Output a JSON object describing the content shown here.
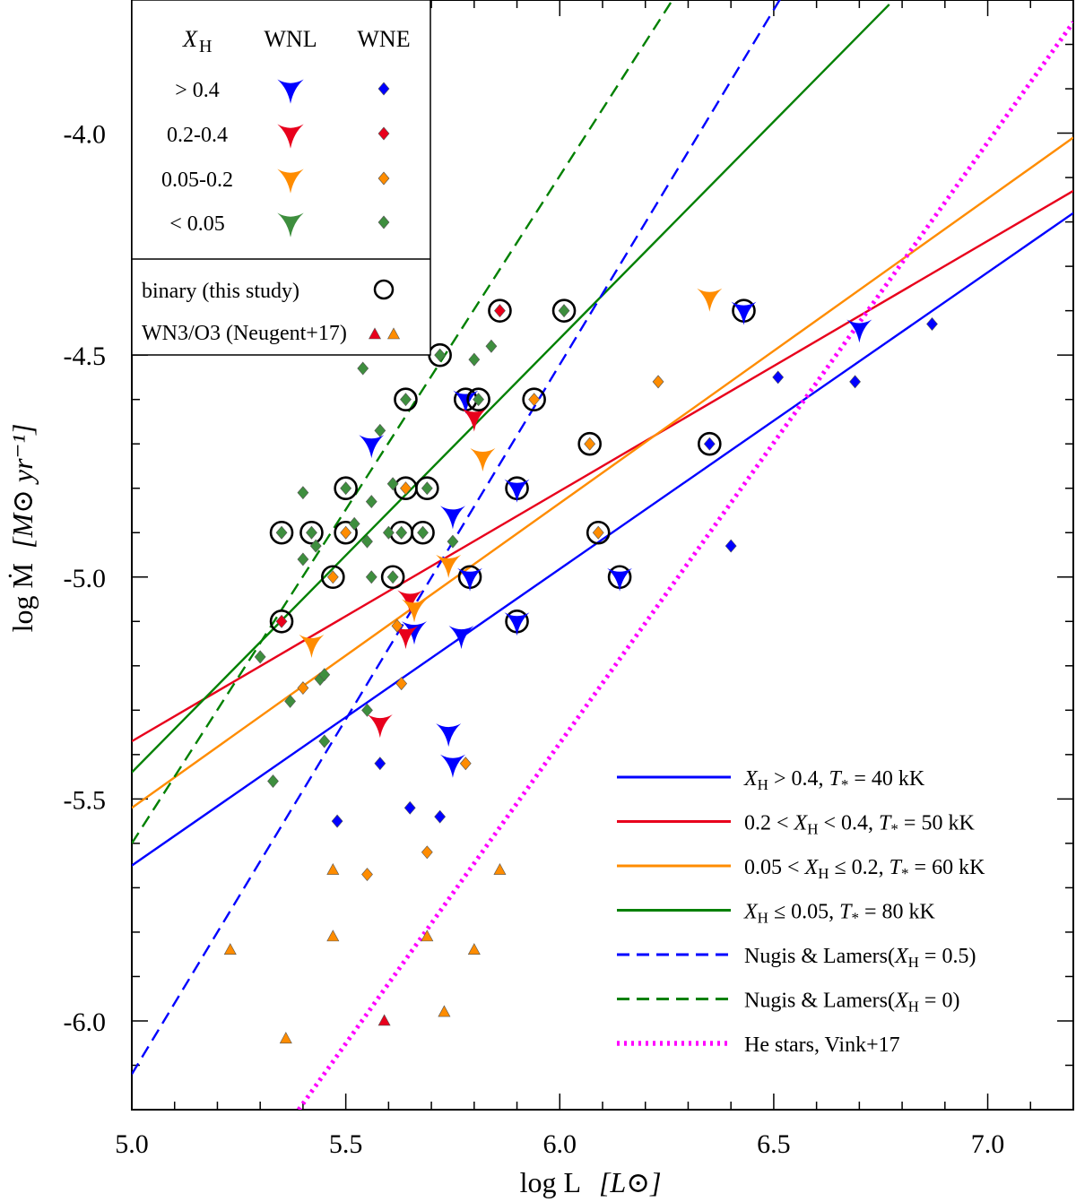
{
  "chart_data": {
    "type": "scatter",
    "title": "",
    "xlabel": "log L",
    "xlabel_unit": "[L⊙]",
    "ylabel": "log Ṁ",
    "ylabel_unit": "[M⊙ yr⁻¹]",
    "xlim": [
      5.0,
      7.2
    ],
    "ylim": [
      -6.2,
      -3.7
    ],
    "x_ticks": [
      5.0,
      5.5,
      6.0,
      6.5,
      7.0
    ],
    "x_tick_labels": [
      "5.0",
      "5.5",
      "6.0",
      "6.5",
      "7.0"
    ],
    "y_ticks": [
      -6.0,
      -5.5,
      -5.0,
      -4.5,
      -4.0
    ],
    "y_tick_labels": [
      "-6.0",
      "-5.5",
      "-5.0",
      "-4.5",
      "-4.0"
    ],
    "colors": {
      "blue": "#0000ff",
      "red": "#e8001c",
      "orange": "#ff8c00",
      "green": "#3e8e3e",
      "dark_green": "#008000",
      "magenta": "#ff00ff",
      "neugent_red": "#e8001c",
      "neugent_orange": "#ff8c00"
    },
    "categories_legend": {
      "header_xh": "X",
      "header_xh_sub": "H",
      "header_wnl": "WNL",
      "header_wne": "WNE",
      "rows": [
        {
          "label": "> 0.4",
          "color": "blue"
        },
        {
          "label": "0.2-0.4",
          "color": "red"
        },
        {
          "label": "0.05-0.2",
          "color": "orange"
        },
        {
          "label": "< 0.05",
          "color": "green"
        }
      ],
      "binary_label": "binary (this study)",
      "neugent_label": "WN3/O3 (Neugent+17)"
    },
    "lines": [
      {
        "name": "XH > 0.4, T* = 40 kK",
        "label_parts": [
          "X",
          "H",
          " > 0.4, ",
          "T",
          "*",
          " = 40 kK"
        ],
        "color": "blue",
        "style": "solid",
        "points": [
          [
            5.0,
            -5.65
          ],
          [
            7.2,
            -4.18
          ]
        ]
      },
      {
        "name": "0.2 < XH < 0.4, T* = 50 kK",
        "label_parts": [
          "0.2 < ",
          "X",
          "H",
          " < 0.4, ",
          "T",
          "*",
          " = 50 kK"
        ],
        "color": "red",
        "style": "solid",
        "points": [
          [
            5.0,
            -5.37
          ],
          [
            7.2,
            -4.13
          ]
        ]
      },
      {
        "name": "0.05 < XH ≤ 0.2, T* = 60 kK",
        "label_parts": [
          "0.05 < ",
          "X",
          "H",
          " ≤ 0.2, ",
          "T",
          "*",
          " = 60 kK"
        ],
        "color": "orange",
        "style": "solid",
        "points": [
          [
            5.0,
            -5.52
          ],
          [
            7.2,
            -4.01
          ]
        ]
      },
      {
        "name": "XH ≤ 0.05, T* = 80 kK",
        "label_parts": [
          "X",
          "H",
          " ≤ 0.05, ",
          "T",
          "*",
          " = 80 kK"
        ],
        "color": "dark_green",
        "style": "solid",
        "points": [
          [
            5.0,
            -5.44
          ],
          [
            6.77,
            -3.71
          ]
        ]
      },
      {
        "name": "Nugis & Lamers(XH = 0.5)",
        "label_parts": [
          "Nugis & Lamers(",
          "X",
          "H",
          " = 0.5)"
        ],
        "color": "blue",
        "style": "dashed",
        "points": [
          [
            5.0,
            -6.12
          ],
          [
            6.52,
            -3.69
          ]
        ]
      },
      {
        "name": "Nugis & Lamers(XH = 0)",
        "label_parts": [
          "Nugis & Lamers(",
          "X",
          "H",
          " = 0)"
        ],
        "color": "dark_green",
        "style": "dashed",
        "points": [
          [
            5.0,
            -5.6
          ],
          [
            6.27,
            -3.69
          ]
        ]
      },
      {
        "name": "He stars, Vink+17",
        "label_parts": [
          "He stars, Vink+17"
        ],
        "color": "magenta",
        "style": "dotted",
        "points": [
          [
            5.39,
            -6.2
          ],
          [
            7.2,
            -3.75
          ]
        ]
      }
    ],
    "series": [
      {
        "name": "WNL XH > 0.4",
        "marker": "tri",
        "color": "blue",
        "points": [
          {
            "x": 5.56,
            "y": -4.7,
            "b": false
          },
          {
            "x": 5.78,
            "y": -4.6,
            "b": true
          },
          {
            "x": 5.75,
            "y": -4.86,
            "b": false
          },
          {
            "x": 5.9,
            "y": -4.8,
            "b": true
          },
          {
            "x": 5.79,
            "y": -5.0,
            "b": true
          },
          {
            "x": 5.66,
            "y": -5.12,
            "b": false
          },
          {
            "x": 5.77,
            "y": -5.13,
            "b": false
          },
          {
            "x": 5.9,
            "y": -5.1,
            "b": true
          },
          {
            "x": 5.74,
            "y": -5.35,
            "b": false
          },
          {
            "x": 5.75,
            "y": -5.42,
            "b": false
          },
          {
            "x": 6.14,
            "y": -5.0,
            "b": true
          },
          {
            "x": 6.43,
            "y": -4.4,
            "b": true
          },
          {
            "x": 6.7,
            "y": -4.44,
            "b": false
          }
        ]
      },
      {
        "name": "WNL 0.2-0.4",
        "marker": "tri",
        "color": "red",
        "points": [
          {
            "x": 5.8,
            "y": -4.64,
            "b": false
          },
          {
            "x": 5.65,
            "y": -5.05,
            "b": false
          },
          {
            "x": 5.64,
            "y": -5.13,
            "b": false
          },
          {
            "x": 5.58,
            "y": -5.33,
            "b": false
          }
        ]
      },
      {
        "name": "WNL 0.05-0.2",
        "marker": "tri",
        "color": "orange",
        "points": [
          {
            "x": 5.82,
            "y": -4.73,
            "b": false
          },
          {
            "x": 5.74,
            "y": -4.97,
            "b": false
          },
          {
            "x": 5.66,
            "y": -5.07,
            "b": false
          },
          {
            "x": 5.42,
            "y": -5.15,
            "b": false
          },
          {
            "x": 6.35,
            "y": -4.37,
            "b": false
          }
        ]
      },
      {
        "name": "WNE XH > 0.4",
        "marker": "diamond",
        "color": "blue",
        "points": [
          {
            "x": 6.35,
            "y": -4.7,
            "b": true
          },
          {
            "x": 6.51,
            "y": -4.55,
            "b": false
          },
          {
            "x": 6.69,
            "y": -4.56,
            "b": false
          },
          {
            "x": 6.87,
            "y": -4.43,
            "b": false
          },
          {
            "x": 6.4,
            "y": -4.93,
            "b": false
          },
          {
            "x": 5.58,
            "y": -5.42,
            "b": false
          },
          {
            "x": 5.48,
            "y": -5.55,
            "b": false
          },
          {
            "x": 5.65,
            "y": -5.52,
            "b": false
          },
          {
            "x": 5.72,
            "y": -5.54,
            "b": false
          }
        ]
      },
      {
        "name": "WNE 0.2-0.4",
        "marker": "diamond",
        "color": "red",
        "points": [
          {
            "x": 5.86,
            "y": -4.4,
            "b": true
          },
          {
            "x": 5.35,
            "y": -5.1,
            "b": true
          }
        ]
      },
      {
        "name": "WNE 0.05-0.2",
        "marker": "diamond",
        "color": "orange",
        "points": [
          {
            "x": 5.94,
            "y": -4.6,
            "b": true
          },
          {
            "x": 6.07,
            "y": -4.7,
            "b": true
          },
          {
            "x": 5.64,
            "y": -4.8,
            "b": true
          },
          {
            "x": 5.5,
            "y": -4.9,
            "b": true
          },
          {
            "x": 6.09,
            "y": -4.9,
            "b": true
          },
          {
            "x": 5.47,
            "y": -5.0,
            "b": true
          },
          {
            "x": 6.23,
            "y": -4.56,
            "b": false
          },
          {
            "x": 5.62,
            "y": -5.11,
            "b": false
          },
          {
            "x": 5.4,
            "y": -5.25,
            "b": false
          },
          {
            "x": 5.63,
            "y": -5.24,
            "b": false
          },
          {
            "x": 5.78,
            "y": -5.42,
            "b": false
          },
          {
            "x": 5.69,
            "y": -5.62,
            "b": false
          },
          {
            "x": 5.55,
            "y": -5.67,
            "b": false
          }
        ]
      },
      {
        "name": "WNE < 0.05",
        "marker": "diamond",
        "color": "green",
        "points": [
          {
            "x": 6.01,
            "y": -4.4,
            "b": true
          },
          {
            "x": 5.72,
            "y": -4.5,
            "b": true
          },
          {
            "x": 5.64,
            "y": -4.6,
            "b": true
          },
          {
            "x": 5.81,
            "y": -4.6,
            "b": true
          },
          {
            "x": 5.5,
            "y": -4.8,
            "b": true
          },
          {
            "x": 5.69,
            "y": -4.8,
            "b": true
          },
          {
            "x": 5.35,
            "y": -4.9,
            "b": true
          },
          {
            "x": 5.42,
            "y": -4.9,
            "b": true
          },
          {
            "x": 5.63,
            "y": -4.9,
            "b": true
          },
          {
            "x": 5.68,
            "y": -4.9,
            "b": true
          },
          {
            "x": 5.61,
            "y": -5.0,
            "b": true
          },
          {
            "x": 5.84,
            "y": -4.48,
            "b": false
          },
          {
            "x": 5.8,
            "y": -4.51,
            "b": false
          },
          {
            "x": 5.54,
            "y": -4.53,
            "b": false
          },
          {
            "x": 5.58,
            "y": -4.67,
            "b": false
          },
          {
            "x": 5.4,
            "y": -4.81,
            "b": false
          },
          {
            "x": 5.56,
            "y": -4.83,
            "b": false
          },
          {
            "x": 5.61,
            "y": -4.79,
            "b": false
          },
          {
            "x": 5.52,
            "y": -4.88,
            "b": false
          },
          {
            "x": 5.43,
            "y": -4.93,
            "b": false
          },
          {
            "x": 5.55,
            "y": -4.92,
            "b": false
          },
          {
            "x": 5.6,
            "y": -4.9,
            "b": false
          },
          {
            "x": 5.75,
            "y": -4.92,
            "b": false
          },
          {
            "x": 5.4,
            "y": -4.96,
            "b": false
          },
          {
            "x": 5.56,
            "y": -5.0,
            "b": false
          },
          {
            "x": 5.3,
            "y": -5.18,
            "b": false
          },
          {
            "x": 5.44,
            "y": -5.23,
            "b": false
          },
          {
            "x": 5.45,
            "y": -5.22,
            "b": false
          },
          {
            "x": 5.37,
            "y": -5.28,
            "b": false
          },
          {
            "x": 5.55,
            "y": -5.3,
            "b": false
          },
          {
            "x": 5.45,
            "y": -5.37,
            "b": false
          },
          {
            "x": 5.33,
            "y": -5.46,
            "b": false
          }
        ]
      },
      {
        "name": "WN3/O3 Neugent+17 (orange)",
        "marker": "triangle",
        "color": "neugent_orange",
        "points": [
          {
            "x": 5.47,
            "y": -5.66,
            "b": false
          },
          {
            "x": 5.86,
            "y": -5.66,
            "b": false
          },
          {
            "x": 5.23,
            "y": -5.84,
            "b": false
          },
          {
            "x": 5.47,
            "y": -5.81,
            "b": false
          },
          {
            "x": 5.69,
            "y": -5.81,
            "b": false
          },
          {
            "x": 5.8,
            "y": -5.84,
            "b": false
          },
          {
            "x": 5.36,
            "y": -6.04,
            "b": false
          },
          {
            "x": 5.73,
            "y": -5.98,
            "b": false
          }
        ]
      },
      {
        "name": "WN3/O3 Neugent+17 (red)",
        "marker": "triangle",
        "color": "neugent_red",
        "points": [
          {
            "x": 5.59,
            "y": -6.0,
            "b": false
          }
        ]
      }
    ]
  }
}
